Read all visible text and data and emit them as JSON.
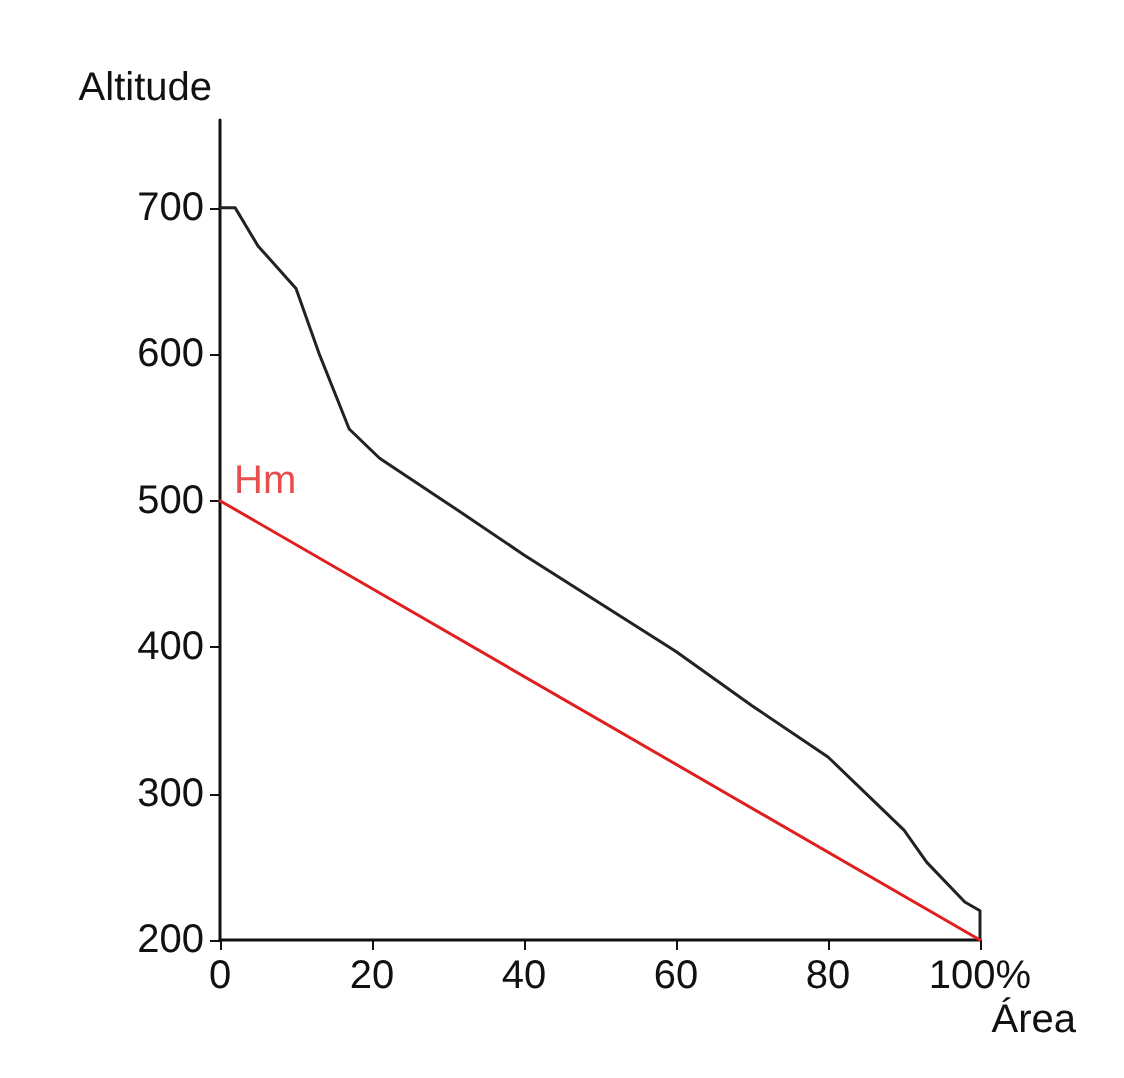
{
  "chart_data": {
    "type": "line",
    "xlabel": "Área",
    "ylabel": "Altitude",
    "xlim": [
      0,
      100
    ],
    "ylim": [
      200,
      760
    ],
    "xticks": [
      0,
      20,
      40,
      60,
      80,
      {
        "value": 100,
        "label": "100%"
      }
    ],
    "yticks": [
      200,
      300,
      400,
      500,
      600,
      700
    ],
    "grid": false,
    "marker": "none",
    "line_style": "solid",
    "series": [
      {
        "color": "#222222",
        "x": [
          0,
          2,
          5,
          10,
          13,
          17,
          21,
          30,
          40,
          50,
          60,
          70,
          80,
          90,
          93,
          98,
          100,
          100
        ],
        "values": [
          700,
          700,
          674,
          645,
          601,
          549,
          529,
          498,
          463,
          430,
          397,
          360,
          325,
          275,
          253,
          226,
          220,
          200
        ]
      },
      {
        "color": "#e02020",
        "x": [
          0,
          100
        ],
        "values": [
          500,
          200
        ]
      }
    ],
    "annotations": [
      {
        "text": "Hm",
        "x": 0,
        "y": 500
      }
    ]
  }
}
